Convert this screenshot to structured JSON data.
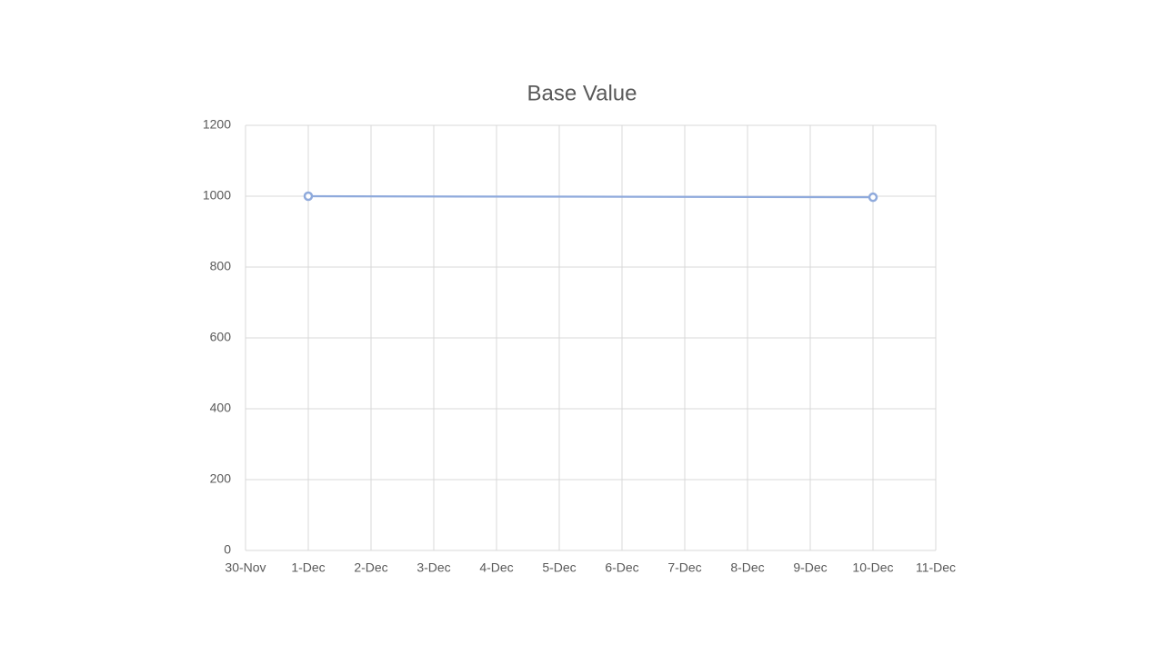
{
  "chart_data": {
    "type": "line",
    "title": "Base Value",
    "x": [
      "1-Dec",
      "10-Dec"
    ],
    "xticks": [
      "30-Nov",
      "1-Dec",
      "2-Dec",
      "3-Dec",
      "4-Dec",
      "5-Dec",
      "6-Dec",
      "7-Dec",
      "8-Dec",
      "9-Dec",
      "10-Dec",
      "11-Dec"
    ],
    "series": [
      {
        "name": "Base Value",
        "color": "#8faadc",
        "values": [
          1000,
          997
        ]
      }
    ],
    "ylim": [
      0,
      1200
    ],
    "yticks": [
      0,
      200,
      400,
      600,
      800,
      1000,
      1200
    ],
    "grid": true
  }
}
